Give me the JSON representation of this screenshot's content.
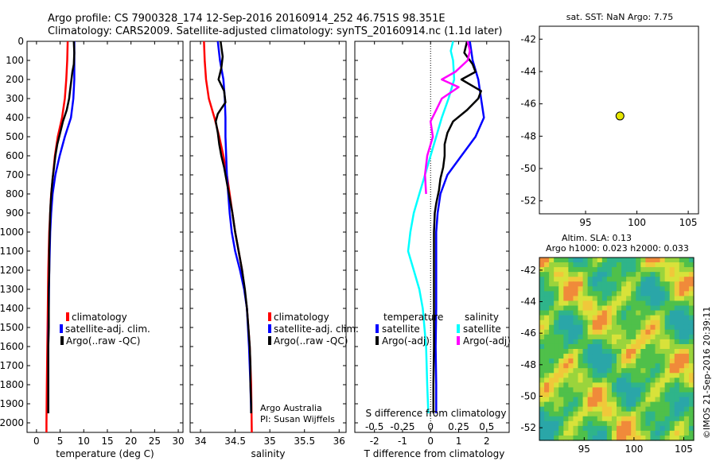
{
  "header": {
    "line1": "Argo profile: CS 7900328_174 12-Sep-2016 20160914_252 46.751S 98.351E",
    "line2": "Climatology: CARS2009. Satellite-adjusted climatology: synTS_20160914.nc (1.1d later)"
  },
  "colors": {
    "climatology": "#ff0000",
    "satellite": "#0000ff",
    "argo": "#000000",
    "sal_satellite": "#00ffff",
    "sal_argo": "#ff00ff",
    "position_marker": "#e6e600"
  },
  "watermark": "©IMOS 21-Sep-2016 20:39:11",
  "chart_data": [
    {
      "type": "line",
      "id": "temperature",
      "xlabel": "temperature (deg C)",
      "ylabel": "",
      "xlim": [
        -2,
        31
      ],
      "ylim": [
        2050,
        0
      ],
      "y_reversed": true,
      "xticks": [
        0,
        5,
        10,
        15,
        20,
        25,
        30
      ],
      "yticks": [
        0,
        100,
        200,
        300,
        400,
        500,
        600,
        700,
        800,
        900,
        1000,
        1100,
        1200,
        1300,
        1400,
        1500,
        1600,
        1700,
        1800,
        1900,
        2000
      ],
      "legend_placement": "lower-center",
      "legend": [
        "climatology",
        "satellite-adj. clim.",
        "Argo(..raw -QC)"
      ],
      "series": [
        {
          "name": "climatology",
          "color": "climatology",
          "depth": [
            0,
            100,
            200,
            300,
            400,
            500,
            600,
            700,
            800,
            900,
            1000,
            1200,
            1400,
            1600,
            1800,
            2000,
            2050
          ],
          "values": [
            6.6,
            6.5,
            6.3,
            6.0,
            5.4,
            4.5,
            3.9,
            3.5,
            3.1,
            2.9,
            2.7,
            2.5,
            2.4,
            2.3,
            2.2,
            2.1,
            2.1
          ]
        },
        {
          "name": "satellite-adj. clim.",
          "color": "satellite",
          "depth": [
            0,
            100,
            200,
            300,
            400,
            500,
            600,
            700,
            800,
            900,
            1000,
            1200,
            1400,
            1600,
            1800,
            1950
          ],
          "values": [
            8.0,
            8.0,
            8.0,
            7.8,
            7.3,
            6.0,
            4.9,
            4.0,
            3.4,
            3.1,
            2.9,
            2.7,
            2.6,
            2.5,
            2.5,
            2.5
          ]
        },
        {
          "name": "Argo(..raw -QC)",
          "color": "argo",
          "depth": [
            0,
            60,
            120,
            160,
            200,
            260,
            300,
            360,
            420,
            480,
            540,
            600,
            660,
            720,
            780,
            850,
            900,
            1000,
            1100,
            1200,
            1300,
            1400,
            1500,
            1600,
            1700,
            1800,
            1900,
            1950
          ],
          "values": [
            7.9,
            8.0,
            7.9,
            7.6,
            7.4,
            7.1,
            6.9,
            6.4,
            5.6,
            5.0,
            4.4,
            4.0,
            3.7,
            3.4,
            3.2,
            3.0,
            2.9,
            2.8,
            2.7,
            2.7,
            2.6,
            2.6,
            2.6,
            2.5,
            2.5,
            2.5,
            2.5,
            2.5
          ]
        }
      ]
    },
    {
      "type": "line",
      "id": "salinity",
      "xlabel": "salinity",
      "ylabel": "",
      "xlim": [
        33.85,
        36.1
      ],
      "ylim": [
        2050,
        0
      ],
      "y_reversed": true,
      "xticks": [
        34,
        34.5,
        35,
        35.5,
        36
      ],
      "xticklabels": [
        "34",
        "34.5",
        "35",
        "35.5",
        "36"
      ],
      "legend_placement": "lower-center",
      "legend": [
        "climatology",
        "satellite-adj. clim.",
        "Argo(..raw -QC)"
      ],
      "annotation": [
        "Argo Australia",
        "PI: Susan Wijffels"
      ],
      "series": [
        {
          "name": "climatology",
          "color": "climatology",
          "depth": [
            0,
            100,
            200,
            300,
            400,
            500,
            600,
            700,
            800,
            900,
            1000,
            1200,
            1400,
            1600,
            1800,
            2050
          ],
          "values": [
            34.05,
            34.06,
            34.08,
            34.12,
            34.2,
            34.27,
            34.33,
            34.38,
            34.42,
            34.46,
            34.5,
            34.6,
            34.67,
            34.71,
            34.73,
            34.74
          ]
        },
        {
          "name": "satellite-adj. clim.",
          "color": "satellite",
          "depth": [
            0,
            100,
            200,
            300,
            400,
            500,
            600,
            700,
            800,
            900,
            1000,
            1100,
            1200,
            1300,
            1400,
            1600,
            1800,
            1950
          ],
          "values": [
            34.25,
            34.28,
            34.33,
            34.35,
            34.36,
            34.36,
            34.37,
            34.38,
            34.4,
            34.42,
            34.45,
            34.5,
            34.57,
            34.63,
            34.67,
            34.7,
            34.72,
            34.73
          ]
        },
        {
          "name": "Argo(..raw -QC)",
          "color": "argo",
          "depth": [
            0,
            80,
            140,
            200,
            260,
            320,
            380,
            420,
            480,
            540,
            600,
            660,
            720,
            780,
            840,
            900,
            1000,
            1100,
            1200,
            1300,
            1400,
            1500,
            1600,
            1700,
            1800,
            1900,
            1950
          ],
          "values": [
            34.29,
            34.32,
            34.3,
            34.26,
            34.34,
            34.36,
            34.25,
            34.22,
            34.25,
            34.27,
            34.3,
            34.34,
            34.37,
            34.4,
            34.43,
            34.46,
            34.5,
            34.55,
            34.6,
            34.64,
            34.67,
            34.69,
            34.71,
            34.72,
            34.72,
            34.73,
            34.73
          ]
        }
      ]
    },
    {
      "type": "line",
      "id": "difference",
      "xlabel": "T difference from climatology",
      "xlabel_top": "S difference from climatology",
      "xlim": [
        -2.7,
        2.8
      ],
      "ylim": [
        2050,
        0
      ],
      "y_reversed": true,
      "xticks": [
        -2,
        -1,
        0,
        1,
        2
      ],
      "xticks_salinity": [
        -0.5,
        -0.25,
        0,
        0.25,
        0.5
      ],
      "xticklabels_salinity": [
        "-0.5",
        "-0.25",
        "0",
        "0.25",
        "0.5"
      ],
      "legend_placement": "lower-center",
      "legend_temperature_title": "temperature",
      "legend_salinity_title": "salinity",
      "legend": [
        "satellite",
        "Argo(-adj)",
        "satellite",
        "Argo(-adj)"
      ],
      "series": [
        {
          "name": "satellite",
          "group": "temperature",
          "color": "satellite",
          "depth": [
            0,
            100,
            200,
            300,
            400,
            500,
            600,
            700,
            800,
            900,
            1000,
            1200,
            1400,
            1600,
            1800,
            1950
          ],
          "values": [
            1.4,
            1.5,
            1.7,
            1.8,
            1.9,
            1.6,
            1.1,
            0.6,
            0.35,
            0.25,
            0.2,
            0.2,
            0.2,
            0.18,
            0.2,
            0.2
          ]
        },
        {
          "name": "Argo(-adj)",
          "group": "temperature",
          "color": "argo",
          "depth": [
            0,
            60,
            120,
            160,
            200,
            260,
            300,
            360,
            420,
            480,
            540,
            600,
            660,
            720,
            780,
            850,
            900,
            1000,
            1100,
            1200,
            1400,
            1600,
            1800,
            1950
          ],
          "values": [
            1.3,
            1.2,
            1.5,
            1.6,
            1.1,
            1.8,
            1.7,
            1.3,
            0.8,
            0.6,
            0.5,
            0.5,
            0.45,
            0.35,
            0.3,
            0.2,
            0.15,
            0.12,
            0.12,
            0.12,
            0.12,
            0.12,
            0.1,
            0.1
          ]
        },
        {
          "name": "satellite",
          "group": "salinity",
          "color": "sal_satellite",
          "depth": [
            0,
            50,
            100,
            200,
            300,
            400,
            500,
            600,
            700,
            800,
            900,
            1000,
            1100,
            1200,
            1300,
            1400,
            1600,
            1800,
            1950
          ],
          "values": [
            0.2,
            0.18,
            0.2,
            0.21,
            0.16,
            0.1,
            0.05,
            0.0,
            -0.05,
            -0.1,
            -0.15,
            -0.18,
            -0.2,
            -0.15,
            -0.1,
            -0.07,
            -0.04,
            -0.03,
            -0.02
          ]
        },
        {
          "name": "Argo(-adj)",
          "group": "salinity",
          "color": "sal_argo",
          "depth": [
            0,
            50,
            100,
            160,
            200,
            240,
            300,
            360,
            420,
            500,
            600,
            700,
            800
          ],
          "values": [
            0.33,
            0.35,
            0.33,
            0.22,
            0.1,
            0.25,
            0.1,
            0.05,
            0.0,
            0.02,
            -0.03,
            -0.05,
            -0.04
          ]
        }
      ]
    },
    {
      "type": "scatter",
      "id": "position-map",
      "title": "sat. SST: NaN Argo: 7.75",
      "xlim": [
        90.5,
        106
      ],
      "ylim": [
        -52.8,
        -41.2
      ],
      "xticks": [
        95,
        100,
        105
      ],
      "yticks": [
        -42,
        -44,
        -46,
        -48,
        -50,
        -52
      ],
      "points": [
        {
          "x": 98.351,
          "y": -46.751
        }
      ]
    },
    {
      "type": "heatmap",
      "id": "altimetry-map",
      "title_line1": "Altim. SLA: 0.13",
      "title_line2": "Argo h1000: 0.023 h2000: 0.033",
      "xlim": [
        90.5,
        106
      ],
      "ylim": [
        -52.8,
        -41.2
      ],
      "xticks": [
        95,
        100,
        105
      ],
      "yticks": [
        -42,
        -44,
        -46,
        -48,
        -50,
        -52
      ]
    }
  ]
}
